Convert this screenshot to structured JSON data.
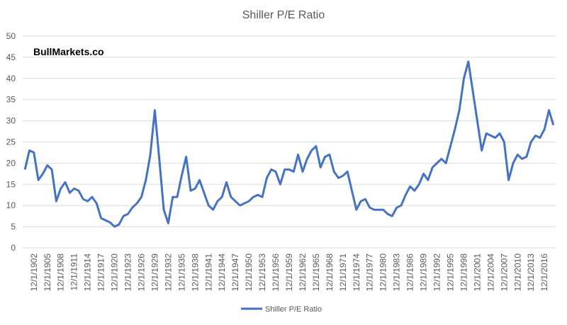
{
  "chart_data": {
    "type": "line",
    "title": "Shiller P/E Ratio",
    "annotation": "BullMarkets.co",
    "categories": [
      null,
      null,
      "12/1/1902",
      null,
      null,
      "12/1/1905",
      null,
      null,
      "12/1/1908",
      null,
      null,
      "12/1/1911",
      null,
      null,
      "12/1/1914",
      null,
      null,
      "12/1/1917",
      null,
      null,
      "12/1/1920",
      null,
      null,
      "12/1/1923",
      null,
      null,
      "12/1/1926",
      null,
      null,
      "12/1/1929",
      null,
      null,
      "12/1/1932",
      null,
      null,
      "12/1/1935",
      null,
      null,
      "12/1/1938",
      null,
      null,
      "12/1/1941",
      null,
      null,
      "12/1/1944",
      null,
      null,
      "12/1/1947",
      null,
      null,
      "12/1/1950",
      null,
      null,
      "12/1/1953",
      null,
      null,
      "12/1/1956",
      null,
      null,
      "12/1/1959",
      null,
      null,
      "12/1/1962",
      null,
      null,
      "12/1/1965",
      null,
      null,
      "12/1/1968",
      null,
      null,
      "12/1/1971",
      null,
      null,
      "12/1/1974",
      null,
      null,
      "12/1/1977",
      null,
      null,
      "12/1/1980",
      null,
      null,
      "12/1/1983",
      null,
      null,
      "12/1/1986",
      null,
      null,
      "12/1/1989",
      null,
      null,
      "12/1/1992",
      null,
      null,
      "12/1/1995",
      null,
      null,
      "12/1/1998",
      null,
      null,
      "12/1/2001",
      null,
      null,
      "12/1/2004",
      null,
      null,
      "12/1/2007",
      null,
      null,
      "12/1/2010",
      null,
      null,
      "12/1/2013",
      null,
      null,
      "12/1/2016",
      null,
      null
    ],
    "series": [
      {
        "name": "Shiller P/E Ratio",
        "color": "#4472c4",
        "values": [
          18.5,
          23,
          22.5,
          16,
          17.5,
          19.5,
          18.5,
          11,
          14,
          15.5,
          13,
          14,
          13.5,
          11.5,
          11,
          12,
          10.5,
          7,
          6.5,
          6,
          5,
          5.5,
          7.5,
          8,
          9.5,
          10.5,
          12,
          16,
          22,
          32.5,
          21,
          9,
          5.8,
          12,
          12,
          17,
          21.5,
          13.5,
          14,
          16,
          13,
          10,
          9,
          11,
          12,
          15.5,
          12,
          11,
          10,
          10.5,
          11,
          12,
          12.5,
          12,
          16.5,
          18.5,
          18,
          15,
          18.5,
          18.5,
          18,
          22,
          18,
          21,
          23,
          24,
          19,
          21.5,
          22,
          18,
          16.5,
          17,
          18,
          13.5,
          9,
          11,
          11.5,
          9.5,
          9,
          9,
          9,
          8,
          7.5,
          9.5,
          10,
          12.5,
          14.5,
          13.5,
          15,
          17.5,
          16,
          19,
          20,
          21,
          20,
          24,
          28,
          32.5,
          40,
          44,
          37,
          30,
          23,
          27,
          26.5,
          26,
          27,
          25,
          16,
          20,
          22,
          21,
          21.5,
          25,
          26.5,
          26,
          28,
          32.5,
          29
        ]
      }
    ],
    "ylim": [
      0,
      50
    ],
    "yticks": [
      0,
      5,
      10,
      15,
      20,
      25,
      30,
      35,
      40,
      45,
      50
    ],
    "grid": true,
    "legend": "bottom"
  }
}
